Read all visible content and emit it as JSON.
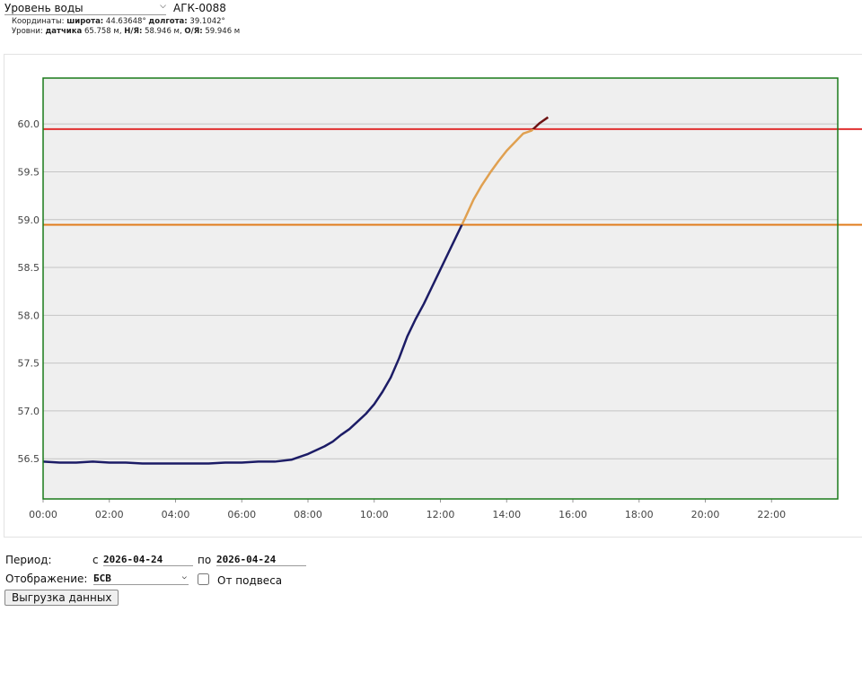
{
  "header": {
    "parameter": "Уровень воды",
    "station": "АГК-0088",
    "coordinates": {
      "label": "Координаты:",
      "lat_label": "широта:",
      "lat": "44.63648°",
      "lon_label": "долгота:",
      "lon": "39.1042°"
    },
    "levels": {
      "label": "Уровни:",
      "sensor_label": "датчика",
      "sensor": "65.758 м,",
      "low_label": "Н/Я:",
      "low": "58.946 м,",
      "high_label": "О/Я:",
      "high": "59.946 м"
    }
  },
  "chart_data": {
    "type": "line",
    "xlim": [
      0,
      24
    ],
    "xticks": [
      {
        "value": 0,
        "label": "00:00"
      },
      {
        "value": 2,
        "label": "02:00"
      },
      {
        "value": 4,
        "label": "04:00"
      },
      {
        "value": 6,
        "label": "06:00"
      },
      {
        "value": 8,
        "label": "08:00"
      },
      {
        "value": 10,
        "label": "10:00"
      },
      {
        "value": 12,
        "label": "12:00"
      },
      {
        "value": 14,
        "label": "14:00"
      },
      {
        "value": 16,
        "label": "16:00"
      },
      {
        "value": 18,
        "label": "18:00"
      },
      {
        "value": 20,
        "label": "20:00"
      },
      {
        "value": 22,
        "label": "22:00"
      }
    ],
    "ylim": [
      56.08,
      60.48
    ],
    "yticks": [
      {
        "value": 56.5,
        "label": "56.5"
      },
      {
        "value": 57,
        "label": "57.0"
      },
      {
        "value": 57.5,
        "label": "57.5"
      },
      {
        "value": 58,
        "label": "58.0"
      },
      {
        "value": 58.5,
        "label": "58.5"
      },
      {
        "value": 59,
        "label": "59.0"
      },
      {
        "value": 59.5,
        "label": "59.5"
      },
      {
        "value": 60,
        "label": "60.0"
      }
    ],
    "grid": true,
    "series": [
      {
        "color": "#1c1c66",
        "x": [
          0,
          0.5,
          1,
          1.5,
          2,
          2.5,
          3,
          3.5,
          4,
          4.5,
          5,
          5.5,
          6,
          6.5,
          7,
          7.5,
          8,
          8.25,
          8.5,
          8.75,
          9,
          9.25,
          9.5,
          9.75,
          10,
          10.25,
          10.5,
          10.75,
          11,
          11.25,
          11.5,
          11.75,
          12,
          12.25,
          12.5,
          12.75,
          13,
          13.25,
          13.5,
          13.75,
          14,
          14.25,
          14.5,
          14.75,
          15,
          15.25
        ],
        "values": [
          56.47,
          56.46,
          56.46,
          56.47,
          56.46,
          56.46,
          56.45,
          56.45,
          56.45,
          56.45,
          56.45,
          56.46,
          56.46,
          56.47,
          56.47,
          56.49,
          56.55,
          56.59,
          56.63,
          56.68,
          56.75,
          56.81,
          56.89,
          56.97,
          57.07,
          57.2,
          57.35,
          57.55,
          57.78,
          57.96,
          58.12,
          58.3,
          58.48,
          58.66,
          58.84,
          59.02,
          59.21,
          59.36,
          59.49,
          59.61,
          59.72,
          59.81,
          59.9,
          59.93,
          60.01,
          60.07
        ]
      }
    ],
    "thresholds": [
      {
        "value": 58.946,
        "color": "#e07b1a",
        "line_color": "#e0a050"
      },
      {
        "value": 59.946,
        "color": "#e03030",
        "line_color": "#6e1414"
      }
    ]
  },
  "form": {
    "period_label": "Период:",
    "from_label": "с",
    "from": "2026-04-24",
    "to_label": "по",
    "to": "2026-04-24",
    "display_label": "Отображение:",
    "display": "БСВ",
    "suspension_label": "От подвеса",
    "export_button": "Выгрузка данных"
  }
}
